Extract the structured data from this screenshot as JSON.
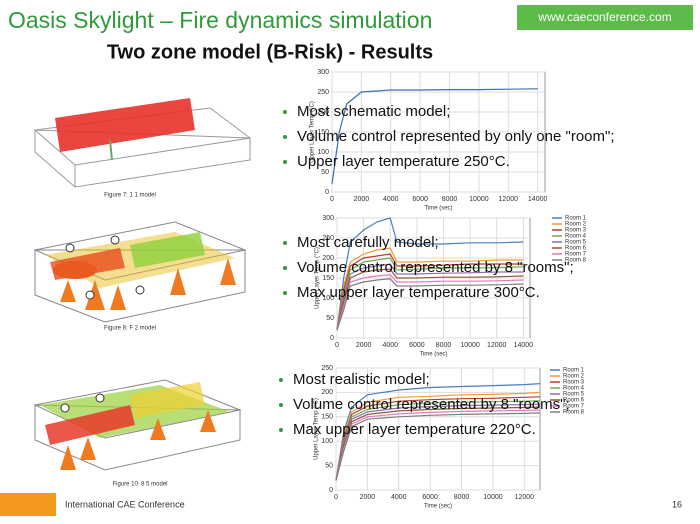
{
  "header": {
    "title": "Oasis Skylight – Fire dynamics simulation",
    "url": "www.caeconference.com",
    "subtitle": "Two zone model (B-Risk) - Results"
  },
  "sections": [
    {
      "bullets": [
        "Most schematic model;",
        "Volume control represented by only one \"room\";",
        "Upper layer temperature 250°C."
      ],
      "figure_caption": "Figure 7: 1 1 model",
      "chart": {
        "type": "line",
        "x_label": "Time (sec)",
        "y_label": "Upper Layer Temp (°C)",
        "x": [
          0,
          500,
          1000,
          2000,
          4000,
          6000,
          8000,
          10000,
          12000,
          14000
        ],
        "series": [
          {
            "color": "#3a6fb0",
            "values": [
              20,
              150,
              220,
              250,
              255,
              255,
              256,
              256,
              257,
              258
            ]
          }
        ],
        "xlim": [
          0,
          14500
        ],
        "xticks": [
          0,
          2000,
          4000,
          6000,
          8000,
          10000,
          12000,
          14000
        ],
        "ylim": [
          0,
          300
        ],
        "yticks": [
          0,
          50,
          100,
          150,
          200,
          250,
          300
        ],
        "grid": true
      }
    },
    {
      "bullets": [
        "Most carefully model;",
        "Volume control represented by 8 \"rooms\";",
        "Max upper layer temperature 300°C."
      ],
      "figure_caption": "Figure 8: F 2 model",
      "chart": {
        "type": "line",
        "x_label": "Time (sec)",
        "y_label": "Upper Layer Temp (°C)",
        "x": [
          0,
          500,
          1000,
          2000,
          3000,
          4000,
          4500,
          6000,
          8000,
          10000,
          12000,
          14000
        ],
        "series": [
          {
            "name": "Room 1",
            "color": "#4a7ebb",
            "values": [
              20,
              150,
              240,
              270,
              290,
              300,
              240,
              235,
              235,
              238,
              238,
              240
            ]
          },
          {
            "name": "Room 2",
            "color": "#f39c34",
            "values": [
              20,
              130,
              190,
              210,
              220,
              225,
              190,
              190,
              192,
              192,
              195,
              195
            ]
          },
          {
            "name": "Room 3",
            "color": "#c0392b",
            "values": [
              20,
              120,
              180,
              200,
              205,
              210,
              180,
              180,
              182,
              185,
              185,
              185
            ]
          },
          {
            "name": "Room 4",
            "color": "#6ab04c",
            "values": [
              20,
              110,
              170,
              190,
              195,
              200,
              170,
              172,
              175,
              175,
              176,
              178
            ]
          },
          {
            "name": "Room 5",
            "color": "#8e6bb0",
            "values": [
              20,
              100,
              160,
              175,
              180,
              185,
              160,
              160,
              162,
              163,
              165,
              165
            ]
          },
          {
            "name": "Room 6",
            "color": "#8b5a2b",
            "values": [
              20,
              90,
              150,
              165,
              170,
              172,
              150,
              150,
              152,
              152,
              153,
              155
            ]
          },
          {
            "name": "Room 7",
            "color": "#e377c2",
            "values": [
              20,
              80,
              140,
              150,
              155,
              158,
              140,
              140,
              142,
              142,
              143,
              145
            ]
          },
          {
            "name": "Room 8",
            "color": "#7f7f7f",
            "values": [
              20,
              70,
              130,
              140,
              145,
              148,
              130,
              130,
              132,
              132,
              133,
              135
            ]
          }
        ],
        "xlim": [
          0,
          14500
        ],
        "xticks": [
          0,
          2000,
          4000,
          6000,
          8000,
          10000,
          12000,
          14000
        ],
        "ylim": [
          0,
          300
        ],
        "yticks": [
          0,
          50,
          100,
          150,
          200,
          250,
          300
        ],
        "grid": true
      }
    },
    {
      "bullets": [
        "Most realistic model;",
        "Volume control represented by 8 \"rooms\";",
        "Max upper layer temperature 220°C."
      ],
      "figure_caption": "Figure 10: 8 5 model",
      "chart": {
        "type": "line",
        "x_label": "Time (sec)",
        "y_label": "Upper Layer Temp (°C)",
        "x": [
          0,
          500,
          1000,
          2000,
          4000,
          6000,
          8000,
          10000,
          12000,
          13000
        ],
        "series": [
          {
            "name": "Room 1",
            "color": "#4a7ebb",
            "values": [
              20,
              120,
              170,
              195,
              205,
              210,
              212,
              214,
              216,
              218
            ]
          },
          {
            "name": "Room 2",
            "color": "#f39c34",
            "values": [
              20,
              110,
              160,
              180,
              190,
              192,
              195,
              196,
              198,
              200
            ]
          },
          {
            "name": "Room 3",
            "color": "#c0392b",
            "values": [
              20,
              105,
              155,
              172,
              182,
              185,
              187,
              188,
              190,
              191
            ]
          },
          {
            "name": "Room 4",
            "color": "#6ab04c",
            "values": [
              20,
              100,
              150,
              165,
              175,
              178,
              180,
              181,
              182,
              183
            ]
          },
          {
            "name": "Room 5",
            "color": "#8e6bb0",
            "values": [
              20,
              95,
              145,
              160,
              168,
              171,
              173,
              174,
              175,
              176
            ]
          },
          {
            "name": "Room 6",
            "color": "#8b5a2b",
            "values": [
              20,
              90,
              140,
              155,
              162,
              165,
              167,
              168,
              169,
              170
            ]
          },
          {
            "name": "Room 7",
            "color": "#e377c2",
            "values": [
              20,
              85,
              135,
              150,
              156,
              159,
              161,
              162,
              163,
              164
            ]
          },
          {
            "name": "Room 8",
            "color": "#7f7f7f",
            "values": [
              20,
              80,
              130,
              145,
              150,
              153,
              155,
              156,
              157,
              158
            ]
          }
        ],
        "xlim": [
          0,
          13000
        ],
        "xticks": [
          0,
          2000,
          4000,
          6000,
          8000,
          10000,
          12000
        ],
        "ylim": [
          0,
          250
        ],
        "yticks": [
          0,
          50,
          100,
          150,
          200,
          250
        ],
        "grid": true
      }
    }
  ],
  "footer": {
    "org": "International CAE Conference",
    "page": "16"
  }
}
